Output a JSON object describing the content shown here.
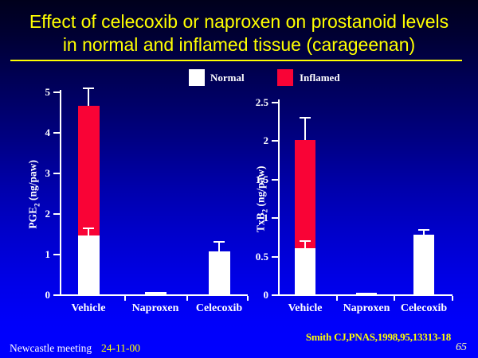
{
  "slide": {
    "title_line1": "Effect of celecoxib or naproxen on prostanoid levels",
    "title_line2": "in normal and inflamed tissue (carageenan)",
    "citation": "Smith CJ,PNAS,1998,95,13313-18",
    "footer_left": "Newcastle meeting",
    "footer_date": "24-11-00",
    "page_number": "65"
  },
  "colors": {
    "background_top": "#00001c",
    "background_bottom": "#0000ff",
    "title_text": "#ffff00",
    "axis_and_text": "#ffffff",
    "normal_bar": "#ffffff",
    "inflamed_bar": "#f90336"
  },
  "legend": {
    "items": [
      {
        "label": "Normal",
        "color": "#ffffff"
      },
      {
        "label": "Inflamed",
        "color": "#f90336"
      }
    ]
  },
  "chart_data": [
    {
      "type": "bar",
      "title": "",
      "xlabel": "",
      "ylabel": "PGE2 (ng/paw)",
      "ylabel_parts": {
        "pre": "PGE",
        "sub": "2",
        "post": " (ng/paw)"
      },
      "categories": [
        "Vehicle",
        "Naproxen",
        "Celecoxib"
      ],
      "yticks": [
        0,
        1,
        2,
        3,
        4,
        5
      ],
      "ylim": [
        0,
        5
      ],
      "grid": false,
      "series": [
        {
          "name": "Normal",
          "values": [
            1.45,
            0.05,
            1.05
          ],
          "errors": [
            0.2,
            0,
            0.27
          ]
        },
        {
          "name": "Inflamed",
          "values": [
            4.65,
            null,
            null
          ],
          "errors": [
            0.45,
            null,
            null
          ]
        }
      ]
    },
    {
      "type": "bar",
      "title": "",
      "xlabel": "",
      "ylabel": "TxB2 (ng/paw)",
      "ylabel_parts": {
        "pre": "TxB",
        "sub": "2",
        "post": " (ng/paw)"
      },
      "categories": [
        "Vehicle",
        "Naproxen",
        "Celecoxib"
      ],
      "yticks": [
        0,
        0.5,
        1,
        1.5,
        2,
        2.5
      ],
      "ylim": [
        0,
        2.5
      ],
      "grid": false,
      "series": [
        {
          "name": "Normal",
          "values": [
            0.6,
            0.02,
            0.77
          ],
          "errors": [
            0.1,
            0,
            0.08
          ]
        },
        {
          "name": "Inflamed",
          "values": [
            2.0,
            null,
            null
          ],
          "errors": [
            0.3,
            null,
            null
          ]
        }
      ]
    }
  ]
}
